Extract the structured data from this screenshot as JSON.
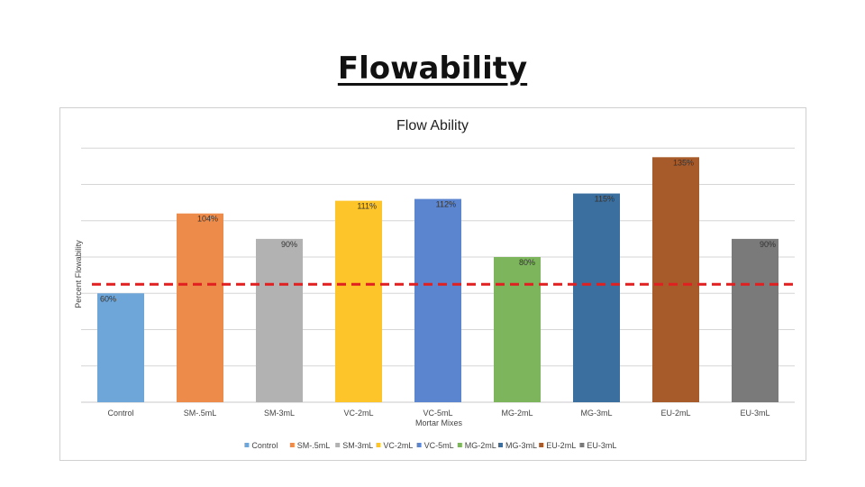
{
  "slide": {
    "title": "Flowability"
  },
  "chart_data": {
    "type": "bar",
    "title": "Flow Ability",
    "xlabel": "Mortar Mixes",
    "ylabel": "Percent Flowability",
    "categories": [
      "Control",
      "SM-.5mL",
      "SM-3mL",
      "VC-2mL",
      "VC-5mL",
      "MG-2mL",
      "MG-3mL",
      "EU-2mL",
      "EU-3mL"
    ],
    "values": [
      60,
      104,
      90,
      111,
      112,
      80,
      115,
      135,
      90
    ],
    "value_labels": [
      "60%",
      "104%",
      "90%",
      "111%",
      "112%",
      "80%",
      "115%",
      "135%",
      "90%"
    ],
    "colors": [
      "#6fa6d9",
      "#ed8b4a",
      "#b2b2b2",
      "#fdc52a",
      "#5b85cf",
      "#7db55c",
      "#3a6fa0",
      "#a75a2a",
      "#7a7a7a"
    ],
    "legend": [
      "Control",
      "SM-.5mL",
      "SM-3mL",
      "VC-2mL",
      "VC-5mL",
      "MG-2mL",
      "MG-3mL",
      "EU-2mL",
      "EU-3mL"
    ],
    "legend_position": "bottom",
    "reference_line": {
      "value": 65,
      "color": "#e02020",
      "style": "dashed"
    },
    "ylim": [
      0,
      160
    ],
    "grid": true
  }
}
